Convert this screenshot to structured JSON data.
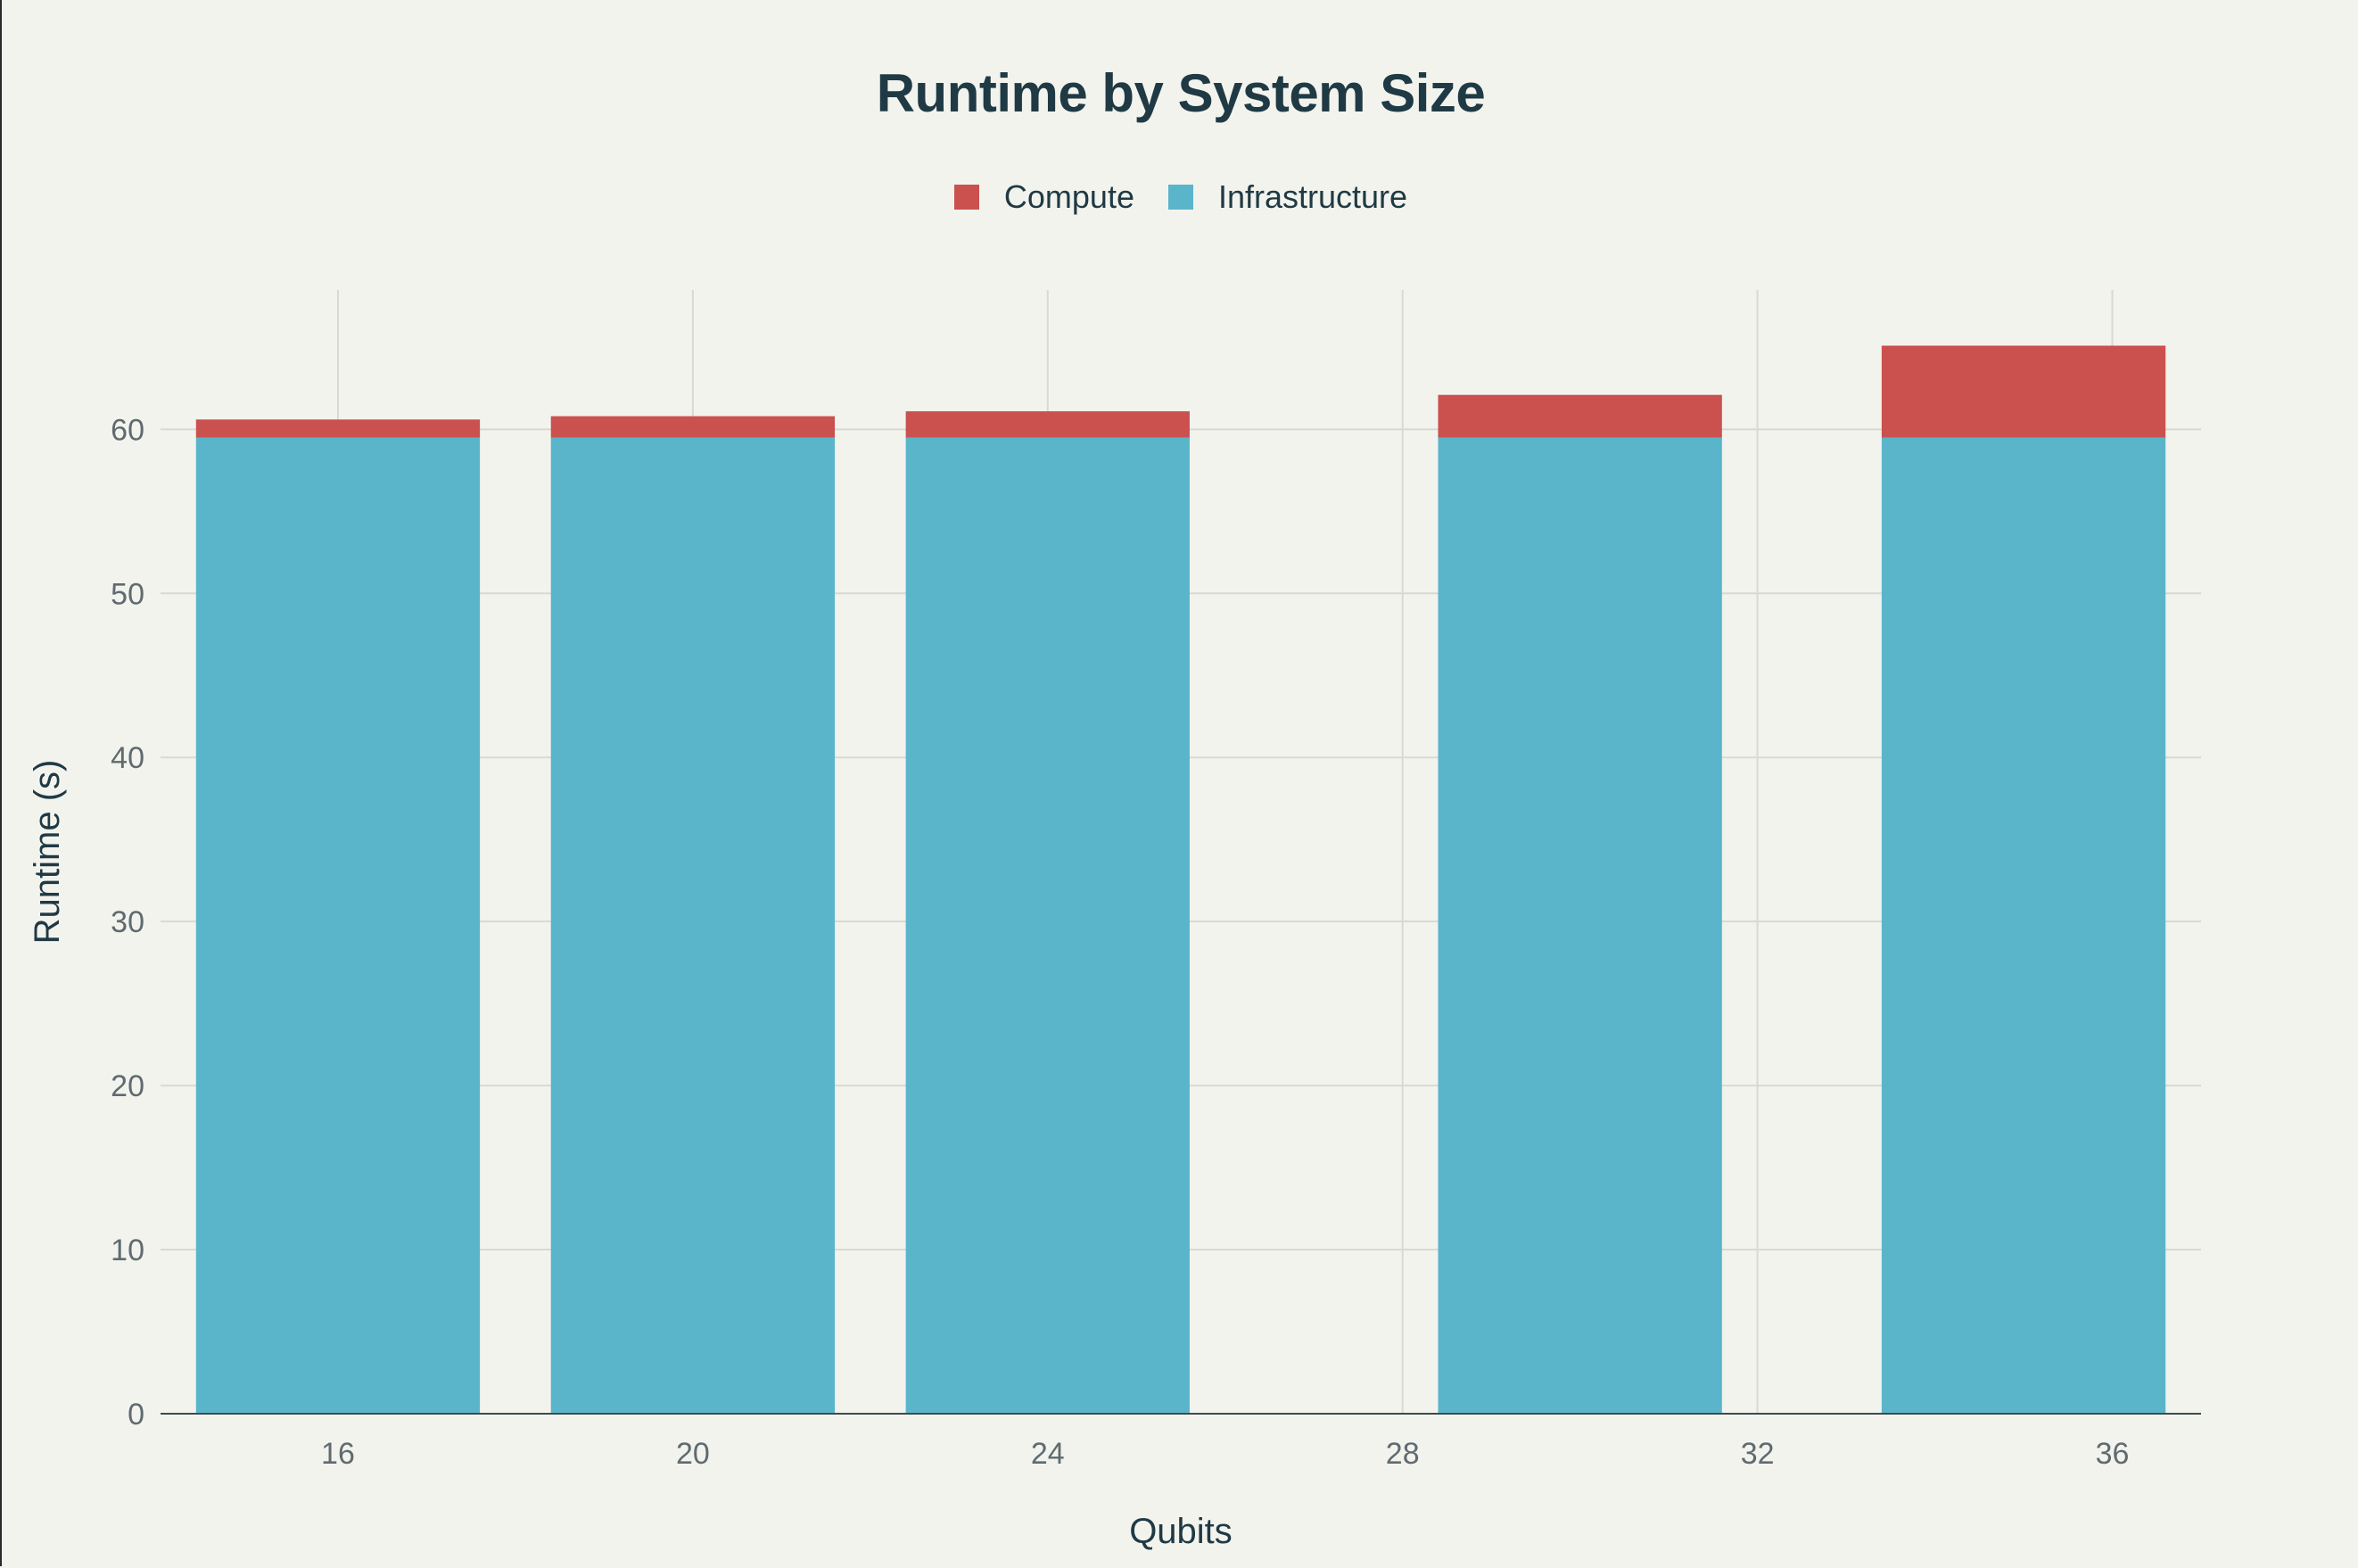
{
  "chart_data": {
    "type": "bar",
    "stacked": true,
    "title": "Runtime by System Size",
    "xlabel": "Qubits",
    "ylabel": "Runtime (s)",
    "x": [
      16,
      20,
      24,
      30,
      35
    ],
    "x_ticks": [
      16,
      20,
      24,
      28,
      32,
      36
    ],
    "y_ticks": [
      0,
      10,
      20,
      30,
      40,
      50,
      60
    ],
    "xlim": [
      14,
      37
    ],
    "ylim": [
      0,
      68.5
    ],
    "bar_width": 3.2,
    "grid": true,
    "legend_position": "top-center",
    "series": [
      {
        "name": "Infrastructure",
        "color": "#5ab5ca",
        "values": [
          59.5,
          59.5,
          59.5,
          59.5,
          59.5
        ]
      },
      {
        "name": "Compute",
        "color": "#cb514e",
        "values": [
          1.1,
          1.3,
          1.6,
          2.6,
          5.6
        ]
      }
    ],
    "legend_order": [
      "Compute",
      "Infrastructure"
    ]
  }
}
